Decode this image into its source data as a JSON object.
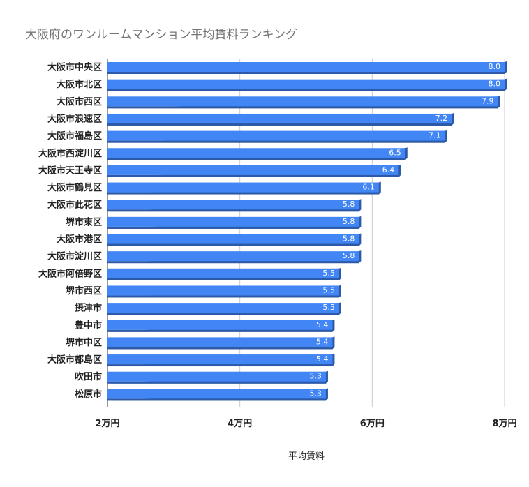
{
  "chart_data": {
    "type": "bar",
    "orientation": "horizontal",
    "title": "大阪府のワンルームマンション平均賃料ランキング",
    "xlabel": "平均賃料",
    "ylabel": "",
    "categories": [
      "大阪市中央区",
      "大阪市北区",
      "大阪市西区",
      "大阪市浪速区",
      "大阪市福島区",
      "大阪市西淀川区",
      "大阪市天王寺区",
      "大阪市鶴見区",
      "大阪市此花区",
      "堺市東区",
      "大阪市港区",
      "大阪市淀川区",
      "大阪市阿倍野区",
      "堺市西区",
      "摂津市",
      "豊中市",
      "堺市中区",
      "大阪市都島区",
      "吹田市",
      "松原市"
    ],
    "values": [
      8.0,
      8.0,
      7.9,
      7.2,
      7.1,
      6.5,
      6.4,
      6.1,
      5.8,
      5.8,
      5.8,
      5.8,
      5.5,
      5.5,
      5.5,
      5.4,
      5.4,
      5.4,
      5.3,
      5.3
    ],
    "value_labels": [
      "8.0",
      "8.0",
      "7.9",
      "7.2",
      "7.1",
      "6.5",
      "6.4",
      "6.1",
      "5.8",
      "5.8",
      "5.8",
      "5.8",
      "5.5",
      "5.5",
      "5.5",
      "5.4",
      "5.4",
      "5.4",
      "5.3",
      "5.3"
    ],
    "xlim": [
      2,
      8
    ],
    "xticks": [
      2,
      4,
      6,
      8
    ],
    "xtick_labels": [
      "2万円",
      "4万円",
      "6万円",
      "8万円"
    ],
    "grid": true,
    "legend": "none",
    "bar_color": "#4285f4",
    "bar_shadow_color": "#2c5aa8"
  }
}
